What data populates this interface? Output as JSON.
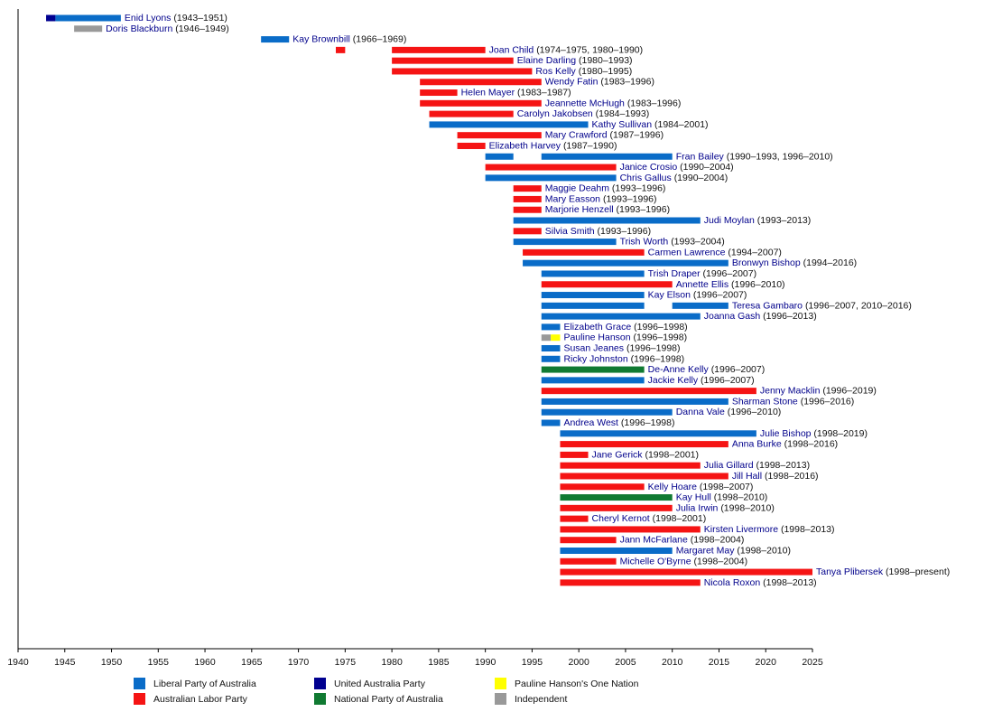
{
  "chart_data": {
    "type": "timeline",
    "xlim": [
      1940,
      2025
    ],
    "xticks": [
      1940,
      1945,
      1950,
      1955,
      1960,
      1965,
      1970,
      1975,
      1980,
      1985,
      1990,
      1995,
      2000,
      2005,
      2010,
      2015,
      2020,
      2025
    ],
    "parties": [
      {
        "name": "Liberal Party of Australia",
        "color": "#0a6cc8"
      },
      {
        "name": "Australian Labor Party",
        "color": "#f51414"
      },
      {
        "name": "United Australia Party",
        "color": "#000090"
      },
      {
        "name": "National Party of Australia",
        "color": "#107a32"
      },
      {
        "name": "Pauline Hanson's One Nation",
        "color": "#ffff00"
      },
      {
        "name": "Independent",
        "color": "#999999"
      }
    ],
    "rows": [
      {
        "name": "Enid Lyons",
        "years": "(1943–1951)",
        "segments": [
          {
            "start": 1943,
            "end": 1944,
            "party": "United Australia Party"
          },
          {
            "start": 1944,
            "end": 1951,
            "party": "Liberal Party of Australia"
          }
        ]
      },
      {
        "name": "Doris Blackburn",
        "years": "(1946–1949)",
        "segments": [
          {
            "start": 1946,
            "end": 1949,
            "party": "Independent"
          }
        ]
      },
      {
        "name": "Kay Brownbill",
        "years": "(1966–1969)",
        "segments": [
          {
            "start": 1966,
            "end": 1969,
            "party": "Liberal Party of Australia"
          }
        ]
      },
      {
        "name": "Joan Child",
        "years": "(1974–1975, 1980–1990)",
        "segments": [
          {
            "start": 1974,
            "end": 1975,
            "party": "Australian Labor Party"
          },
          {
            "start": 1980,
            "end": 1990,
            "party": "Australian Labor Party"
          }
        ]
      },
      {
        "name": "Elaine Darling",
        "years": "(1980–1993)",
        "segments": [
          {
            "start": 1980,
            "end": 1993,
            "party": "Australian Labor Party"
          }
        ]
      },
      {
        "name": "Ros Kelly",
        "years": "(1980–1995)",
        "segments": [
          {
            "start": 1980,
            "end": 1995,
            "party": "Australian Labor Party"
          }
        ]
      },
      {
        "name": "Wendy Fatin",
        "years": "(1983–1996)",
        "segments": [
          {
            "start": 1983,
            "end": 1996,
            "party": "Australian Labor Party"
          }
        ]
      },
      {
        "name": "Helen Mayer",
        "years": "(1983–1987)",
        "segments": [
          {
            "start": 1983,
            "end": 1987,
            "party": "Australian Labor Party"
          }
        ]
      },
      {
        "name": "Jeannette McHugh",
        "years": "(1983–1996)",
        "segments": [
          {
            "start": 1983,
            "end": 1996,
            "party": "Australian Labor Party"
          }
        ]
      },
      {
        "name": "Carolyn Jakobsen",
        "years": "(1984–1993)",
        "segments": [
          {
            "start": 1984,
            "end": 1993,
            "party": "Australian Labor Party"
          }
        ]
      },
      {
        "name": "Kathy Sullivan",
        "years": "(1984–2001)",
        "segments": [
          {
            "start": 1984,
            "end": 2001,
            "party": "Liberal Party of Australia"
          }
        ]
      },
      {
        "name": "Mary Crawford",
        "years": "(1987–1996)",
        "segments": [
          {
            "start": 1987,
            "end": 1996,
            "party": "Australian Labor Party"
          }
        ]
      },
      {
        "name": "Elizabeth Harvey",
        "years": "(1987–1990)",
        "segments": [
          {
            "start": 1987,
            "end": 1990,
            "party": "Australian Labor Party"
          }
        ]
      },
      {
        "name": "Fran Bailey",
        "years": "(1990–1993, 1996–2010)",
        "segments": [
          {
            "start": 1990,
            "end": 1993,
            "party": "Liberal Party of Australia"
          },
          {
            "start": 1996,
            "end": 2010,
            "party": "Liberal Party of Australia"
          }
        ]
      },
      {
        "name": "Janice Crosio",
        "years": "(1990–2004)",
        "segments": [
          {
            "start": 1990,
            "end": 2004,
            "party": "Australian Labor Party"
          }
        ]
      },
      {
        "name": "Chris Gallus",
        "years": "(1990–2004)",
        "segments": [
          {
            "start": 1990,
            "end": 2004,
            "party": "Liberal Party of Australia"
          }
        ]
      },
      {
        "name": "Maggie Deahm",
        "years": "(1993–1996)",
        "segments": [
          {
            "start": 1993,
            "end": 1996,
            "party": "Australian Labor Party"
          }
        ]
      },
      {
        "name": "Mary Easson",
        "years": "(1993–1996)",
        "segments": [
          {
            "start": 1993,
            "end": 1996,
            "party": "Australian Labor Party"
          }
        ]
      },
      {
        "name": "Marjorie Henzell",
        "years": "(1993–1996)",
        "segments": [
          {
            "start": 1993,
            "end": 1996,
            "party": "Australian Labor Party"
          }
        ]
      },
      {
        "name": "Judi Moylan",
        "years": "(1993–2013)",
        "segments": [
          {
            "start": 1993,
            "end": 2013,
            "party": "Liberal Party of Australia"
          }
        ]
      },
      {
        "name": "Silvia Smith",
        "years": "(1993–1996)",
        "segments": [
          {
            "start": 1993,
            "end": 1996,
            "party": "Australian Labor Party"
          }
        ]
      },
      {
        "name": "Trish Worth",
        "years": "(1993–2004)",
        "segments": [
          {
            "start": 1993,
            "end": 2004,
            "party": "Liberal Party of Australia"
          }
        ]
      },
      {
        "name": "Carmen Lawrence",
        "years": "(1994–2007)",
        "segments": [
          {
            "start": 1994,
            "end": 2007,
            "party": "Australian Labor Party"
          }
        ]
      },
      {
        "name": "Bronwyn Bishop",
        "years": "(1994–2016)",
        "segments": [
          {
            "start": 1994,
            "end": 2016,
            "party": "Liberal Party of Australia"
          }
        ]
      },
      {
        "name": "Trish Draper",
        "years": "(1996–2007)",
        "segments": [
          {
            "start": 1996,
            "end": 2007,
            "party": "Liberal Party of Australia"
          }
        ]
      },
      {
        "name": "Annette Ellis",
        "years": "(1996–2010)",
        "segments": [
          {
            "start": 1996,
            "end": 2010,
            "party": "Australian Labor Party"
          }
        ]
      },
      {
        "name": "Kay Elson",
        "years": "(1996–2007)",
        "segments": [
          {
            "start": 1996,
            "end": 2007,
            "party": "Liberal Party of Australia"
          }
        ]
      },
      {
        "name": "Teresa Gambaro",
        "years": "(1996–2007, 2010–2016)",
        "segments": [
          {
            "start": 1996,
            "end": 2007,
            "party": "Liberal Party of Australia"
          },
          {
            "start": 2010,
            "end": 2016,
            "party": "Liberal Party of Australia"
          }
        ]
      },
      {
        "name": "Joanna Gash",
        "years": "(1996–2013)",
        "segments": [
          {
            "start": 1996,
            "end": 2013,
            "party": "Liberal Party of Australia"
          }
        ]
      },
      {
        "name": "Elizabeth Grace",
        "years": "(1996–1998)",
        "segments": [
          {
            "start": 1996,
            "end": 1998,
            "party": "Liberal Party of Australia"
          }
        ]
      },
      {
        "name": "Pauline Hanson",
        "years": "(1996–1998)",
        "segments": [
          {
            "start": 1996,
            "end": 1997,
            "party": "Independent"
          },
          {
            "start": 1997,
            "end": 1998,
            "party": "Pauline Hanson's One Nation"
          }
        ]
      },
      {
        "name": "Susan Jeanes",
        "years": "(1996–1998)",
        "segments": [
          {
            "start": 1996,
            "end": 1998,
            "party": "Liberal Party of Australia"
          }
        ]
      },
      {
        "name": "Ricky Johnston",
        "years": "(1996–1998)",
        "segments": [
          {
            "start": 1996,
            "end": 1998,
            "party": "Liberal Party of Australia"
          }
        ]
      },
      {
        "name": "De-Anne Kelly",
        "years": "(1996–2007)",
        "segments": [
          {
            "start": 1996,
            "end": 2007,
            "party": "National Party of Australia"
          }
        ]
      },
      {
        "name": "Jackie Kelly",
        "years": "(1996–2007)",
        "segments": [
          {
            "start": 1996,
            "end": 2007,
            "party": "Liberal Party of Australia"
          }
        ]
      },
      {
        "name": "Jenny Macklin",
        "years": "(1996–2019)",
        "segments": [
          {
            "start": 1996,
            "end": 2019,
            "party": "Australian Labor Party"
          }
        ]
      },
      {
        "name": "Sharman Stone",
        "years": "(1996–2016)",
        "segments": [
          {
            "start": 1996,
            "end": 2016,
            "party": "Liberal Party of Australia"
          }
        ]
      },
      {
        "name": "Danna Vale",
        "years": "(1996–2010)",
        "segments": [
          {
            "start": 1996,
            "end": 2010,
            "party": "Liberal Party of Australia"
          }
        ]
      },
      {
        "name": "Andrea West",
        "years": "(1996–1998)",
        "segments": [
          {
            "start": 1996,
            "end": 1998,
            "party": "Liberal Party of Australia"
          }
        ]
      },
      {
        "name": "Julie Bishop",
        "years": "(1998–2019)",
        "segments": [
          {
            "start": 1998,
            "end": 2019,
            "party": "Liberal Party of Australia"
          }
        ]
      },
      {
        "name": "Anna Burke",
        "years": "(1998–2016)",
        "segments": [
          {
            "start": 1998,
            "end": 2016,
            "party": "Australian Labor Party"
          }
        ]
      },
      {
        "name": "Jane Gerick",
        "years": "(1998–2001)",
        "segments": [
          {
            "start": 1998,
            "end": 2001,
            "party": "Australian Labor Party"
          }
        ]
      },
      {
        "name": "Julia Gillard",
        "years": "(1998–2013)",
        "segments": [
          {
            "start": 1998,
            "end": 2013,
            "party": "Australian Labor Party"
          }
        ]
      },
      {
        "name": "Jill Hall",
        "years": "(1998–2016)",
        "segments": [
          {
            "start": 1998,
            "end": 2016,
            "party": "Australian Labor Party"
          }
        ]
      },
      {
        "name": "Kelly Hoare",
        "years": "(1998–2007)",
        "segments": [
          {
            "start": 1998,
            "end": 2007,
            "party": "Australian Labor Party"
          }
        ]
      },
      {
        "name": "Kay Hull",
        "years": "(1998–2010)",
        "segments": [
          {
            "start": 1998,
            "end": 2010,
            "party": "National Party of Australia"
          }
        ]
      },
      {
        "name": "Julia Irwin",
        "years": "(1998–2010)",
        "segments": [
          {
            "start": 1998,
            "end": 2010,
            "party": "Australian Labor Party"
          }
        ]
      },
      {
        "name": "Cheryl Kernot",
        "years": "(1998–2001)",
        "segments": [
          {
            "start": 1998,
            "end": 2001,
            "party": "Australian Labor Party"
          }
        ]
      },
      {
        "name": "Kirsten Livermore",
        "years": "(1998–2013)",
        "segments": [
          {
            "start": 1998,
            "end": 2013,
            "party": "Australian Labor Party"
          }
        ]
      },
      {
        "name": "Jann McFarlane",
        "years": "(1998–2004)",
        "segments": [
          {
            "start": 1998,
            "end": 2004,
            "party": "Australian Labor Party"
          }
        ]
      },
      {
        "name": "Margaret May",
        "years": "(1998–2010)",
        "segments": [
          {
            "start": 1998,
            "end": 2010,
            "party": "Liberal Party of Australia"
          }
        ]
      },
      {
        "name": "Michelle O'Byrne",
        "years": "(1998–2004)",
        "segments": [
          {
            "start": 1998,
            "end": 2004,
            "party": "Australian Labor Party"
          }
        ]
      },
      {
        "name": "Tanya Plibersek",
        "years": "(1998–present)",
        "segments": [
          {
            "start": 1998,
            "end": 2025,
            "party": "Australian Labor Party"
          }
        ]
      },
      {
        "name": "Nicola Roxon",
        "years": "(1998–2013)",
        "segments": [
          {
            "start": 1998,
            "end": 2013,
            "party": "Australian Labor Party"
          }
        ]
      }
    ]
  }
}
